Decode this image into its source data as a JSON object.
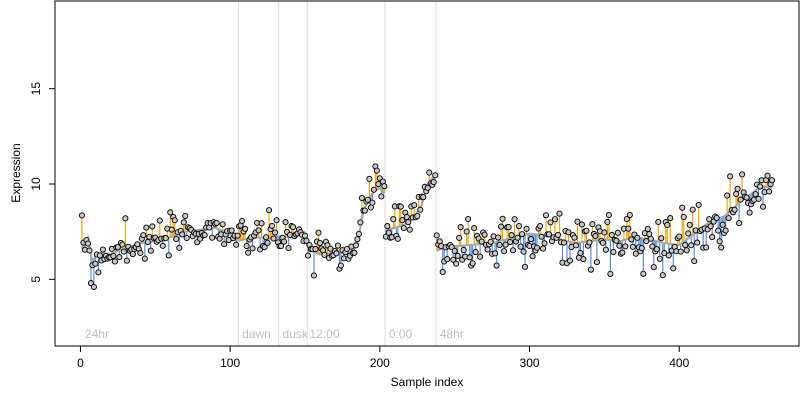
{
  "chart_data": {
    "type": "scatter",
    "title": "",
    "xlabel": "Sample index",
    "ylabel": "Expression",
    "xlim": [
      -17,
      480
    ],
    "ylim": [
      1.5,
      19.6
    ],
    "xticks": [
      0,
      100,
      200,
      300,
      400
    ],
    "yticks": [
      5,
      10,
      15
    ],
    "grid": false,
    "legend": "none",
    "colors": {
      "points_fill": "#c8c8c8",
      "points_stroke": "#000000",
      "trend_line": "#a6a6a6",
      "above_trend": "#f2a800",
      "below_trend": "#5b8fd6",
      "segment_lines": "#dcdcdc",
      "segment_labels": "#b4b4b4"
    },
    "segments": [
      {
        "label": "24hr",
        "start": 1,
        "boundary": null
      },
      {
        "label": "dawn",
        "start": 106,
        "boundary": 105
      },
      {
        "label": "dusk",
        "start": 133,
        "boundary": 132
      },
      {
        "label": "12:00",
        "start": 151,
        "boundary": 151
      },
      {
        "label": "0:00",
        "start": 204,
        "boundary": 203
      },
      {
        "label": "48hr",
        "start": 238,
        "boundary": 237
      }
    ],
    "anchors": [
      [
        1,
        6.6
      ],
      [
        5,
        7.2
      ],
      [
        8,
        5.9
      ],
      [
        10,
        6.2
      ],
      [
        15,
        6.4
      ],
      [
        20,
        6.3
      ],
      [
        25,
        6.5
      ],
      [
        30,
        6.6
      ],
      [
        40,
        6.9
      ],
      [
        50,
        7.0
      ],
      [
        60,
        7.2
      ],
      [
        70,
        7.5
      ],
      [
        80,
        7.6
      ],
      [
        90,
        7.7
      ],
      [
        100,
        7.4
      ],
      [
        105,
        7.0
      ],
      [
        110,
        7.1
      ],
      [
        120,
        7.2
      ],
      [
        130,
        7.1
      ],
      [
        132,
        7.3
      ],
      [
        140,
        7.2
      ],
      [
        150,
        7.5
      ],
      [
        152,
        6.6
      ],
      [
        160,
        6.3
      ],
      [
        170,
        6.4
      ],
      [
        180,
        6.4
      ],
      [
        185,
        6.8
      ],
      [
        188,
        8.2
      ],
      [
        192,
        9.2
      ],
      [
        196,
        9.6
      ],
      [
        200,
        9.8
      ],
      [
        203,
        9.5
      ],
      [
        204,
        7.6
      ],
      [
        210,
        7.7
      ],
      [
        218,
        7.9
      ],
      [
        224,
        8.4
      ],
      [
        228,
        8.9
      ],
      [
        232,
        10.0
      ],
      [
        236,
        10.4
      ],
      [
        237,
        10.3
      ],
      [
        238,
        6.5
      ],
      [
        245,
        6.7
      ],
      [
        260,
        6.8
      ],
      [
        275,
        6.9
      ],
      [
        290,
        7.2
      ],
      [
        300,
        7.4
      ],
      [
        310,
        7.3
      ],
      [
        320,
        7.1
      ],
      [
        330,
        6.9
      ],
      [
        340,
        7.0
      ],
      [
        350,
        7.1
      ],
      [
        360,
        7.0
      ],
      [
        370,
        7.2
      ],
      [
        380,
        7.1
      ],
      [
        390,
        6.9
      ],
      [
        400,
        6.8
      ],
      [
        410,
        7.4
      ],
      [
        420,
        8.0
      ],
      [
        430,
        8.3
      ],
      [
        440,
        9.0
      ],
      [
        450,
        9.6
      ],
      [
        455,
        9.9
      ],
      [
        462,
        9.8
      ]
    ],
    "highlights": [
      [
        30,
        8.2
      ],
      [
        198,
        10.7
      ],
      [
        200,
        10.3
      ],
      [
        233,
        10.6
      ],
      [
        236,
        10.1
      ],
      [
        131,
        8.1
      ],
      [
        137,
        8.0
      ],
      [
        7,
        4.8
      ],
      [
        9,
        4.6
      ],
      [
        156,
        5.2
      ],
      [
        434,
        10.4
      ],
      [
        447,
        8.5
      ],
      [
        462,
        10.2
      ]
    ]
  }
}
